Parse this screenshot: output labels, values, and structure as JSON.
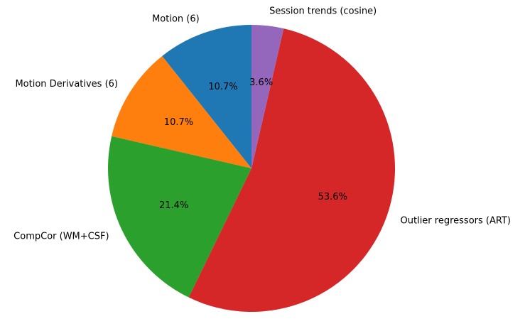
{
  "chart_data": {
    "type": "pie",
    "title": "",
    "start_angle_deg": 90,
    "direction": "counterclockwise",
    "slices": [
      {
        "label": "Motion (6)",
        "value": 10.7,
        "pct_label": "10.7%",
        "color": "#1f77b4"
      },
      {
        "label": "Motion Derivatives (6)",
        "value": 10.7,
        "pct_label": "10.7%",
        "color": "#ff7f0e"
      },
      {
        "label": "CompCor (WM+CSF)",
        "value": 21.4,
        "pct_label": "21.4%",
        "color": "#2ca02c"
      },
      {
        "label": "Outlier regressors (ART)",
        "value": 53.6,
        "pct_label": "53.6%",
        "color": "#d62728"
      },
      {
        "label": "Session trends (cosine)",
        "value": 3.6,
        "pct_label": "3.6%",
        "color": "#9467bd"
      }
    ]
  }
}
